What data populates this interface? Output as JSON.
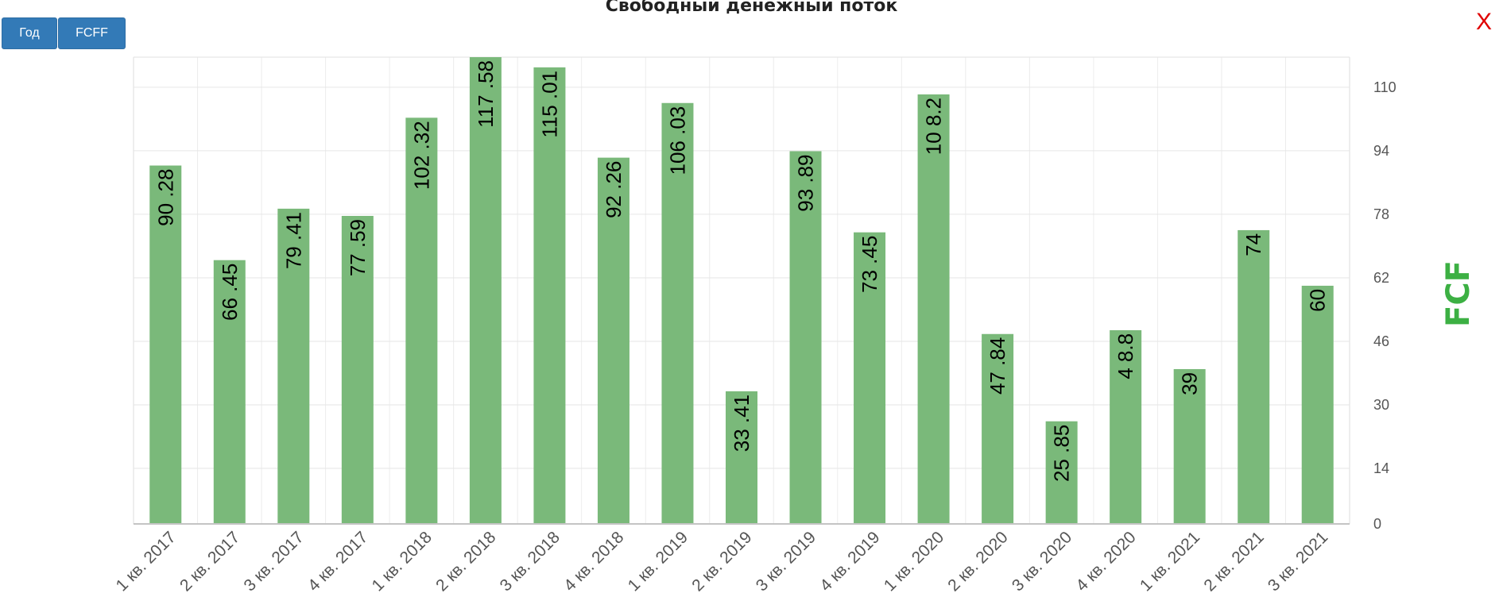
{
  "title": "Свободный денежный поток",
  "buttons": {
    "year": "Год",
    "fcff": "FCFF"
  },
  "close_label": "X",
  "chart_data": {
    "type": "bar",
    "title": "Свободный денежный поток",
    "xlabel": "",
    "ylabel": "FCF",
    "ylim": [
      0,
      117.58
    ],
    "yticks": [
      0,
      14,
      30,
      46,
      62,
      78,
      94,
      110
    ],
    "y_axis_side": "right",
    "grid": true,
    "bar_color": "#7ab97a",
    "label_color": "#000000",
    "ylabel_color": "#3cb043",
    "categories": [
      "1 кв. 2017",
      "2 кв. 2017",
      "3 кв. 2017",
      "4 кв. 2017",
      "1 кв. 2018",
      "2 кв. 2018",
      "3 кв. 2018",
      "4 кв. 2018",
      "1 кв. 2019",
      "2 кв. 2019",
      "3 кв. 2019",
      "4 кв. 2019",
      "1 кв. 2020",
      "2 кв. 2020",
      "3 кв. 2020",
      "4 кв. 2020",
      "1 кв. 2021",
      "2 кв. 2021",
      "3 кв. 2021"
    ],
    "values": [
      90.28,
      66.45,
      79.41,
      77.59,
      102.32,
      117.58,
      115.01,
      92.26,
      106.03,
      33.41,
      93.89,
      73.45,
      108.2,
      47.84,
      25.85,
      48.8,
      39,
      74,
      60
    ],
    "data_labels": [
      "90 .28",
      "66 .45",
      "79 .41",
      "77 .59",
      "102 .32",
      "117 .58",
      "115 .01",
      "92 .26",
      "106 .03",
      "33 .41",
      "93 .89",
      "73 .45",
      "10 8.2",
      "47 .84",
      "25 .85",
      "4 8.8",
      "39",
      "74",
      "60"
    ]
  }
}
